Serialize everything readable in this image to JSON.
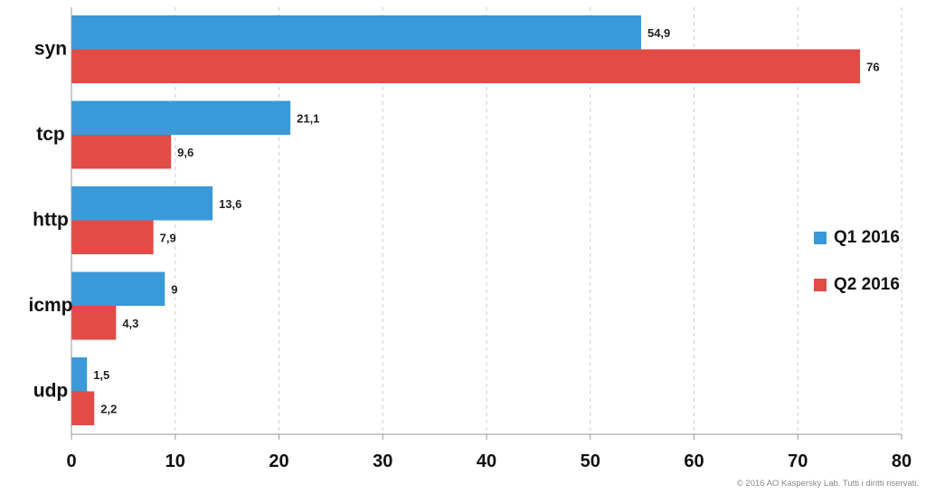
{
  "chart_data": {
    "type": "bar",
    "orientation": "horizontal",
    "categories": [
      "syn",
      "tcp",
      "http",
      "icmp",
      "udp"
    ],
    "series": [
      {
        "name": "Q1 2016",
        "color": "#3a9ad9",
        "values": [
          54.9,
          21.1,
          13.6,
          9,
          1.5
        ],
        "labels": [
          "54,9",
          "21,1",
          "13,6",
          "9",
          "1,5"
        ]
      },
      {
        "name": "Q2 2016",
        "color": "#e34b47",
        "values": [
          76,
          9.6,
          7.9,
          4.3,
          2.2
        ],
        "labels": [
          "76",
          "9,6",
          "7,9",
          "4,3",
          "2,2"
        ]
      }
    ],
    "xlim": [
      0,
      80
    ],
    "x_ticks": [
      0,
      10,
      20,
      30,
      40,
      50,
      60,
      70,
      80
    ],
    "grid": "vertical dashed",
    "legend_position": "right"
  },
  "legend": {
    "q1_label": "Q1 2016",
    "q2_label": "Q2 2016"
  },
  "footer": {
    "copyright": "© 2016 AO Kaspersky Lab. Tutti i diritti riservati."
  }
}
